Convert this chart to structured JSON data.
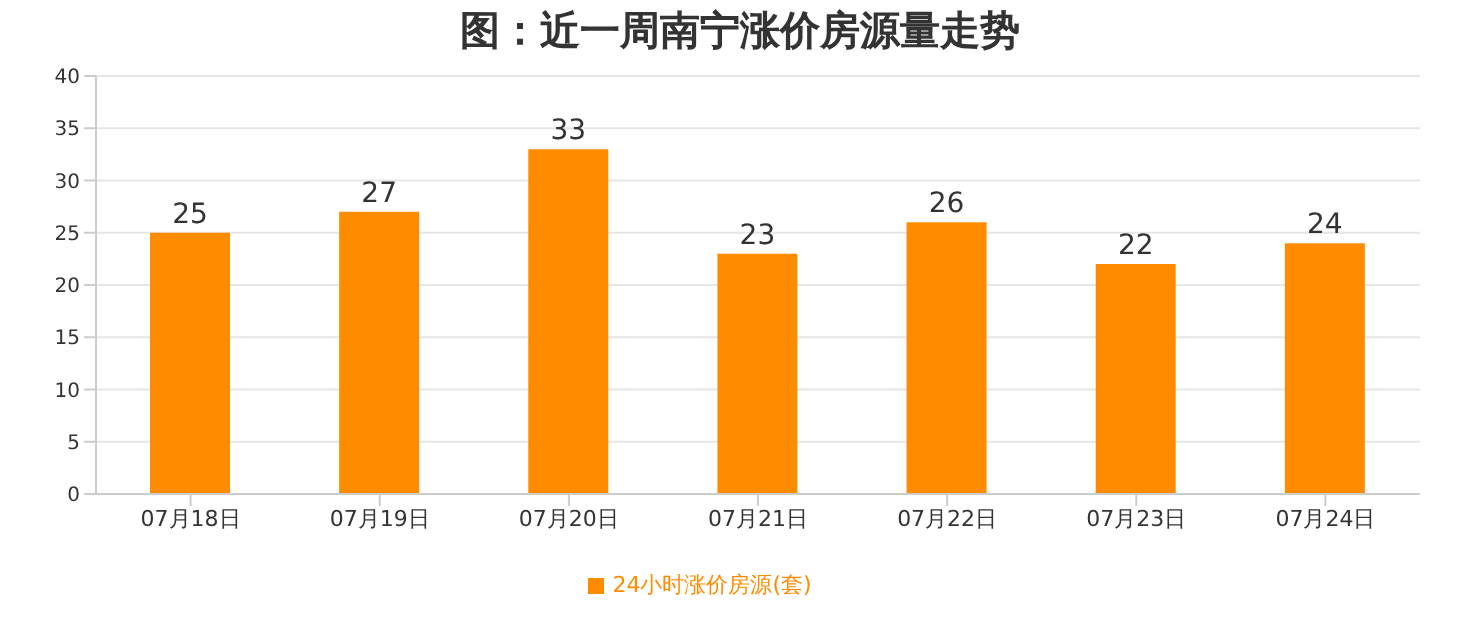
{
  "chart_data": {
    "type": "bar",
    "title": "图：近一周南宁涨价房源量走势",
    "categories": [
      "07月18日",
      "07月19日",
      "07月20日",
      "07月21日",
      "07月22日",
      "07月23日",
      "07月24日"
    ],
    "series": [
      {
        "name": "24小时涨价房源(套)",
        "color": "#ff8c00",
        "values": [
          25,
          27,
          33,
          23,
          26,
          22,
          24
        ]
      }
    ],
    "ylim": [
      0,
      40
    ],
    "yticks": [
      0,
      5,
      10,
      15,
      20,
      25,
      30,
      35,
      40
    ],
    "grid": "y",
    "legend": "bottom",
    "data_labels": true
  }
}
